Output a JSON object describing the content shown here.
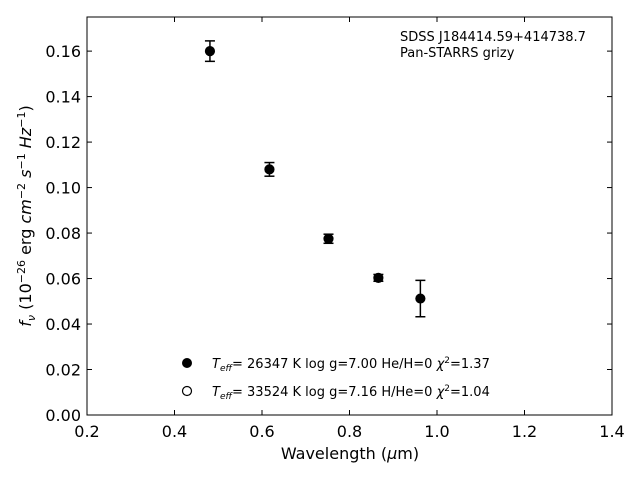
{
  "chart_data": {
    "type": "scatter",
    "title": "",
    "xlabel": "Wavelength (μm)",
    "ylabel": "f_ν (10^-26 erg cm^-2 s^-1 Hz^-1)",
    "xlim": [
      0.2,
      1.4
    ],
    "ylim": [
      0.0,
      0.175
    ],
    "xticks": [
      0.2,
      0.4,
      0.6,
      0.8,
      1.0,
      1.2,
      1.4
    ],
    "yticks": [
      0.0,
      0.02,
      0.04,
      0.06,
      0.08,
      0.1,
      0.12,
      0.14,
      0.16
    ],
    "xtick_labels": [
      "0.2",
      "0.4",
      "0.6",
      "0.8",
      "1.0",
      "1.2",
      "1.4"
    ],
    "ytick_labels": [
      "0.00",
      "0.02",
      "0.04",
      "0.06",
      "0.08",
      "0.10",
      "0.12",
      "0.14",
      "0.16"
    ],
    "annotation": {
      "object": "SDSS J184414.59+414738.7",
      "survey": "Pan-STARRS grizy"
    },
    "series": [
      {
        "name": "Teff= 26347 K  log g=7.00  He/H=0  χ²=1.37",
        "marker": "filled-circle",
        "color": "#000000",
        "points": [
          {
            "x": 0.481,
            "y": 0.16,
            "yerr": 0.0045
          },
          {
            "x": 0.617,
            "y": 0.108,
            "yerr": 0.003
          },
          {
            "x": 0.752,
            "y": 0.0775,
            "yerr": 0.002
          },
          {
            "x": 0.866,
            "y": 0.0603,
            "yerr": 0.0015
          },
          {
            "x": 0.962,
            "y": 0.0512,
            "yerr": 0.008
          }
        ]
      },
      {
        "name": "Teff= 33524 K  log g=7.16  H/He=0  χ²=1.04",
        "marker": "open-circle",
        "color": "#000000",
        "points": []
      }
    ],
    "legend": {
      "location": "lower-center",
      "entries": [
        {
          "teff": "= 26347 K  log g=7.00  He/H=0  ",
          "chi": "=1.37"
        },
        {
          "teff": "= 33524 K  log g=7.16  H/He=0  ",
          "chi": "=1.04"
        }
      ]
    },
    "grid": false
  }
}
